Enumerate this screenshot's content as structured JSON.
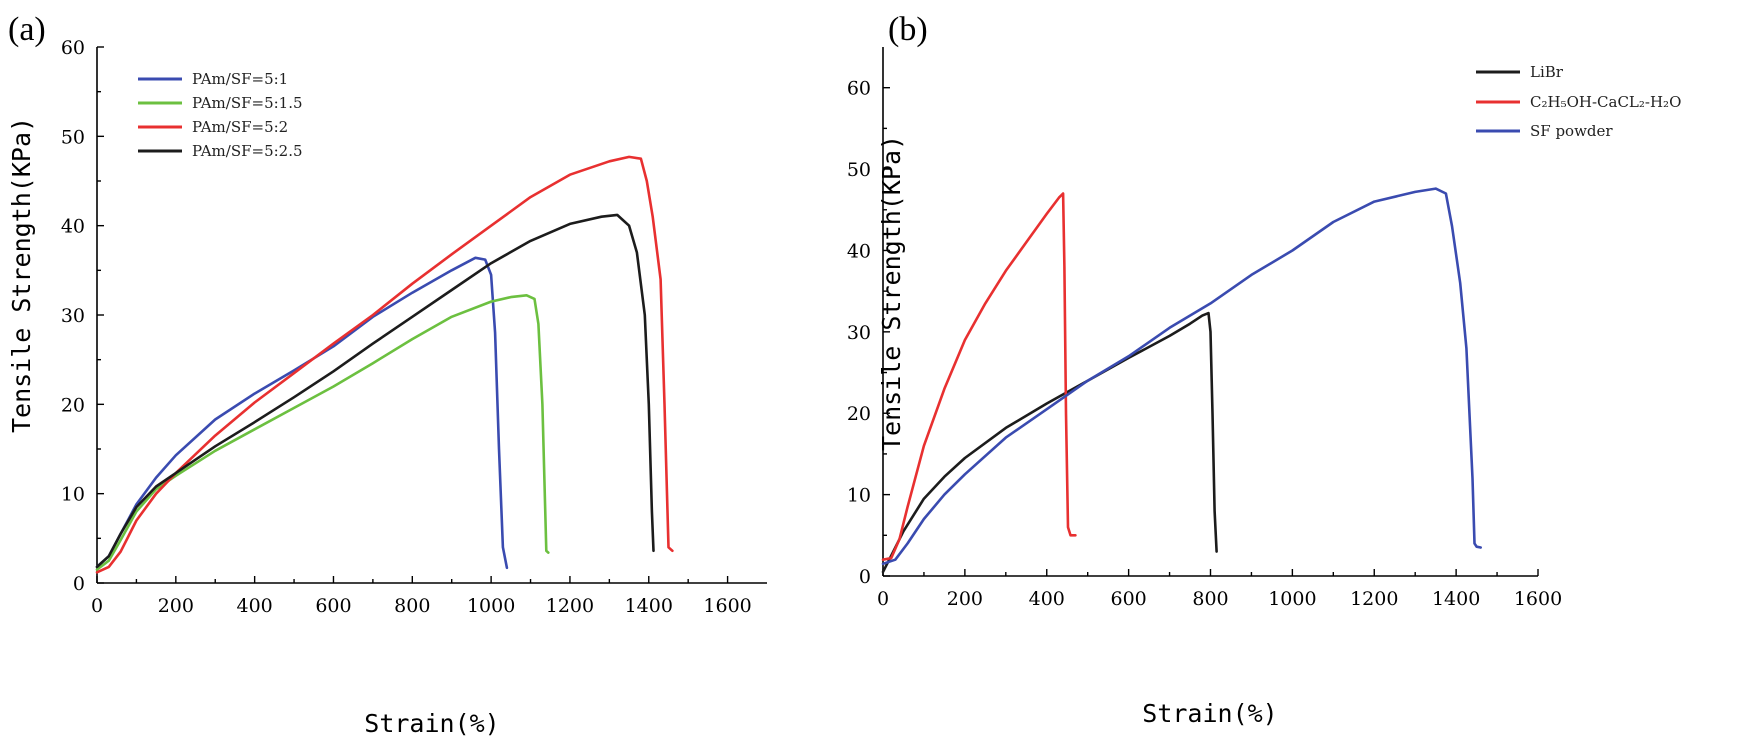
{
  "chart_data": [
    {
      "id": "a",
      "panel_label": "(a)",
      "type": "line",
      "title": "",
      "xlabel": "Strain(%)",
      "ylabel": "Tensile Strength(KPa)",
      "xlim": [
        0,
        1700
      ],
      "ylim": [
        0,
        60
      ],
      "xticks": [
        0,
        200,
        400,
        600,
        800,
        1000,
        1200,
        1400,
        1600
      ],
      "yticks": [
        0,
        10,
        20,
        30,
        40,
        50,
        60
      ],
      "grid": false,
      "legend_position": "top-left",
      "series": [
        {
          "name": "PAm/SF=5:1",
          "color": "#3a4bb0",
          "x": [
            0,
            30,
            60,
            100,
            150,
            200,
            300,
            400,
            500,
            600,
            700,
            800,
            900,
            960,
            985,
            1000,
            1010,
            1020,
            1030,
            1040
          ],
          "y": [
            1.8,
            3.0,
            5.5,
            8.8,
            11.8,
            14.3,
            18.3,
            21.2,
            23.8,
            26.5,
            29.8,
            32.5,
            35.0,
            36.4,
            36.2,
            34.5,
            28.0,
            15.0,
            4.0,
            1.7
          ]
        },
        {
          "name": "PAm/SF=5:1.5",
          "color": "#6cc040",
          "x": [
            0,
            30,
            60,
            100,
            150,
            200,
            300,
            400,
            500,
            600,
            700,
            800,
            900,
            1000,
            1050,
            1090,
            1110,
            1120,
            1130,
            1140,
            1145
          ],
          "y": [
            1.5,
            2.5,
            4.8,
            8.0,
            10.5,
            12.0,
            14.8,
            17.2,
            19.6,
            22.0,
            24.6,
            27.3,
            29.8,
            31.5,
            32.0,
            32.2,
            31.8,
            29.0,
            20.0,
            3.6,
            3.4
          ]
        },
        {
          "name": "PAm/SF=5:2",
          "color": "#e83030",
          "x": [
            0,
            30,
            60,
            100,
            150,
            200,
            300,
            400,
            500,
            600,
            700,
            800,
            900,
            1000,
            1100,
            1200,
            1300,
            1350,
            1380,
            1395,
            1410,
            1430,
            1440,
            1450,
            1460
          ],
          "y": [
            1.2,
            1.8,
            3.5,
            7.0,
            10.0,
            12.3,
            16.5,
            20.2,
            23.5,
            26.8,
            30.0,
            33.5,
            36.8,
            40.0,
            43.2,
            45.7,
            47.2,
            47.7,
            47.5,
            45.0,
            41.0,
            34.0,
            20.0,
            4.0,
            3.6
          ]
        },
        {
          "name": "PAm/SF=5:2.5",
          "color": "#1c1c1c",
          "x": [
            0,
            30,
            60,
            100,
            150,
            200,
            300,
            400,
            500,
            600,
            700,
            800,
            900,
            1000,
            1100,
            1200,
            1280,
            1320,
            1350,
            1370,
            1390,
            1400,
            1408,
            1412
          ],
          "y": [
            1.8,
            3.0,
            5.5,
            8.5,
            10.8,
            12.3,
            15.3,
            18.0,
            20.8,
            23.7,
            26.8,
            29.8,
            32.8,
            35.8,
            38.3,
            40.2,
            41.0,
            41.2,
            40.0,
            37.0,
            30.0,
            20.0,
            8.0,
            3.6
          ]
        }
      ]
    },
    {
      "id": "b",
      "panel_label": "(b)",
      "type": "line",
      "title": "",
      "xlabel": "Strain(%)",
      "ylabel": "Tensile Strength(KPa)",
      "xlim": [
        0,
        1600
      ],
      "ylim": [
        0,
        65
      ],
      "xticks": [
        0,
        200,
        400,
        600,
        800,
        1000,
        1200,
        1400,
        1600
      ],
      "yticks": [
        0,
        10,
        20,
        30,
        40,
        50,
        60
      ],
      "grid": false,
      "legend_position": "top-right",
      "legend_labels": [
        "LiBr",
        "C₂H₅OH-CaCL₂-H₂O",
        "SF powder"
      ],
      "series": [
        {
          "name": "LiBr",
          "color": "#1c1c1c",
          "x": [
            0,
            20,
            50,
            100,
            150,
            200,
            300,
            400,
            500,
            600,
            700,
            750,
            780,
            795,
            800,
            805,
            810,
            815
          ],
          "y": [
            0.5,
            2.5,
            5.5,
            9.5,
            12.2,
            14.5,
            18.2,
            21.2,
            24.0,
            26.8,
            29.5,
            31.0,
            32.0,
            32.3,
            30.0,
            20.0,
            8.0,
            3.0
          ]
        },
        {
          "name": "C₂H₅OH-CaCL₂-H₂O",
          "color": "#e83030",
          "x": [
            0,
            20,
            40,
            60,
            100,
            150,
            200,
            250,
            300,
            350,
            400,
            430,
            440,
            443,
            447,
            452,
            458,
            470
          ],
          "y": [
            2.0,
            2.2,
            4.5,
            8.5,
            16.0,
            23.0,
            29.0,
            33.5,
            37.5,
            41.0,
            44.5,
            46.5,
            47.0,
            38.0,
            20.0,
            6.0,
            5.0,
            5.0
          ]
        },
        {
          "name": "SF powder",
          "color": "#3a4bb0",
          "x": [
            0,
            30,
            60,
            100,
            150,
            200,
            300,
            400,
            500,
            600,
            700,
            800,
            900,
            1000,
            1100,
            1200,
            1300,
            1350,
            1375,
            1390,
            1410,
            1425,
            1440,
            1445,
            1450,
            1460
          ],
          "y": [
            1.5,
            2.0,
            4.0,
            7.0,
            10.0,
            12.5,
            17.0,
            20.5,
            24.0,
            27.0,
            30.5,
            33.5,
            37.0,
            40.0,
            43.5,
            46.0,
            47.2,
            47.6,
            47.0,
            43.0,
            36.0,
            28.0,
            12.0,
            4.0,
            3.6,
            3.5
          ]
        }
      ]
    }
  ]
}
